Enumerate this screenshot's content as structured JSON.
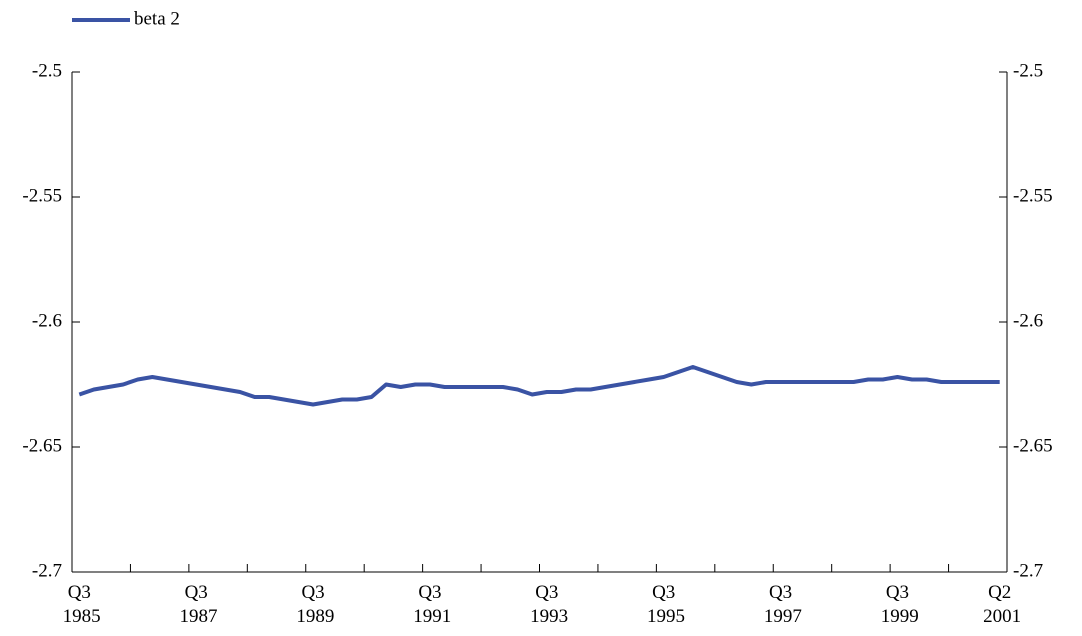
{
  "chart_data": {
    "type": "line",
    "categories": [
      "Q3 1985",
      null,
      null,
      null,
      null,
      null,
      null,
      null,
      "Q3 1987",
      null,
      null,
      null,
      null,
      null,
      null,
      null,
      "Q3 1989",
      null,
      null,
      null,
      null,
      null,
      null,
      null,
      "Q3 1991",
      null,
      null,
      null,
      null,
      null,
      null,
      null,
      "Q3 1993",
      null,
      null,
      null,
      null,
      null,
      null,
      null,
      "Q3 1995",
      null,
      null,
      null,
      null,
      null,
      null,
      null,
      "Q3 1997",
      null,
      null,
      null,
      null,
      null,
      null,
      null,
      "Q3 1999",
      null,
      null,
      null,
      null,
      null,
      null,
      "Q2 2001"
    ],
    "series": [
      {
        "name": "beta 2",
        "color": "#3a53a4",
        "values": [
          -2.629,
          -2.627,
          -2.626,
          -2.625,
          -2.623,
          -2.622,
          -2.623,
          -2.624,
          -2.625,
          -2.626,
          -2.627,
          -2.628,
          -2.63,
          -2.63,
          -2.631,
          -2.632,
          -2.633,
          -2.632,
          -2.631,
          -2.631,
          -2.63,
          -2.625,
          -2.626,
          -2.625,
          -2.625,
          -2.626,
          -2.626,
          -2.626,
          -2.626,
          -2.626,
          -2.627,
          -2.629,
          -2.628,
          -2.628,
          -2.627,
          -2.627,
          -2.626,
          -2.625,
          -2.624,
          -2.623,
          -2.622,
          -2.62,
          -2.618,
          -2.62,
          -2.622,
          -2.624,
          -2.625,
          -2.624,
          -2.624,
          -2.624,
          -2.624,
          -2.624,
          -2.624,
          -2.624,
          -2.623,
          -2.623,
          -2.622,
          -2.623,
          -2.623,
          -2.624,
          -2.624,
          -2.624,
          -2.624,
          -2.624
        ]
      }
    ],
    "ylim": [
      -2.7,
      -2.5
    ],
    "yticks": [
      -2.5,
      -2.55,
      -2.6,
      -2.65,
      -2.7
    ],
    "y2lim": [
      -2.7,
      -2.5
    ],
    "y2ticks": [
      -2.5,
      -2.55,
      -2.6,
      -2.65,
      -2.7
    ],
    "legend": "top-left",
    "grid": false
  }
}
